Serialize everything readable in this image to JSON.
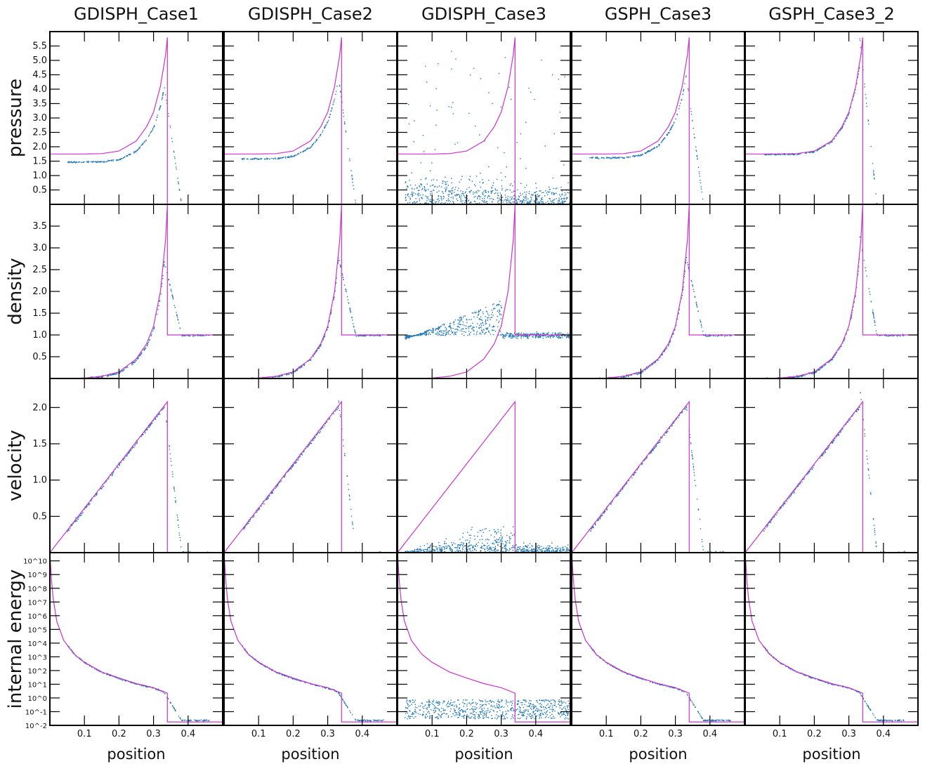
{
  "chart_data": {
    "type": "scatter",
    "columns": [
      "GDISPH_Case1",
      "GDISPH_Case2",
      "GDISPH_Case3",
      "GSPH_Case3",
      "GSPH_Case3_2"
    ],
    "rows": [
      {
        "ylabel": "pressure",
        "ylim": [
          0,
          6
        ],
        "yticks": [
          0.5,
          1.0,
          1.5,
          2.0,
          2.5,
          3.0,
          3.5,
          4.0,
          4.5,
          5.0,
          5.5
        ],
        "ytick_labels": [
          "0.5",
          "1.0",
          "1.5",
          "2.0",
          "2.5",
          "3.0",
          "3.5",
          "4.0",
          "4.5",
          "5.0",
          "5.5"
        ],
        "analytic": {
          "x": [
            0.0,
            0.1,
            0.15,
            0.2,
            0.25,
            0.28,
            0.3,
            0.32,
            0.335,
            0.34,
            0.3401,
            0.5
          ],
          "y": [
            1.75,
            1.75,
            1.76,
            1.85,
            2.2,
            2.7,
            3.2,
            4.1,
            5.2,
            5.8,
            0.0,
            0.0
          ]
        },
        "simulated_peak": [
          4.1,
          4.4,
          5.8,
          4.5,
          5.8
        ]
      },
      {
        "ylabel": "density",
        "ylim": [
          0,
          4
        ],
        "yticks": [
          0.5,
          1.0,
          1.5,
          2.0,
          2.5,
          3.0,
          3.5
        ],
        "ytick_labels": [
          "0.5",
          "1.0",
          "1.5",
          "2.0",
          "2.5",
          "3.0",
          "3.5"
        ],
        "analytic": {
          "x": [
            0.0,
            0.05,
            0.1,
            0.15,
            0.2,
            0.25,
            0.28,
            0.3,
            0.32,
            0.335,
            0.34,
            0.3401,
            0.5
          ],
          "y": [
            0.0,
            0.0,
            0.01,
            0.05,
            0.15,
            0.45,
            0.8,
            1.2,
            2.0,
            3.2,
            4.0,
            1.0,
            1.0
          ]
        },
        "simulated_peak": [
          2.7,
          2.8,
          1.3,
          2.8,
          3.3
        ]
      },
      {
        "ylabel": "velocity",
        "ylim": [
          0,
          2.4
        ],
        "yticks": [
          0.5,
          1.0,
          1.5,
          2.0
        ],
        "ytick_labels": [
          "0.5",
          "1.0",
          "1.5",
          "2.0"
        ],
        "analytic": {
          "x": [
            0.0,
            0.34,
            0.3401,
            0.5
          ],
          "y": [
            0.0,
            2.08,
            0.0,
            0.0
          ]
        },
        "simulated_peak": [
          2.05,
          2.1,
          0.1,
          2.05,
          2.3
        ]
      },
      {
        "ylabel": "internal energy",
        "log": true,
        "ylim": [
          -2,
          10.6
        ],
        "yticks": [
          -2,
          -1,
          0,
          1,
          2,
          3,
          4,
          5,
          6,
          7,
          8,
          9,
          10
        ],
        "ytick_labels": [
          "10^-2",
          "10^-1",
          "10^0",
          "10^1",
          "10^2",
          "10^3",
          "10^4",
          "10^5",
          "10^6",
          "10^7",
          "10^8",
          "10^9",
          "10^10"
        ],
        "analytic": {
          "x": [
            0.0,
            0.005,
            0.01,
            0.02,
            0.04,
            0.07,
            0.1,
            0.15,
            0.2,
            0.25,
            0.3,
            0.34,
            0.3401,
            0.5
          ],
          "y": [
            10.6,
            8.5,
            7.2,
            5.6,
            4.2,
            3.2,
            2.6,
            1.9,
            1.45,
            1.05,
            0.75,
            0.35,
            -1.75,
            -1.75
          ]
        },
        "simulated_peak": [
          0.4,
          0.4,
          0.0,
          0.4,
          0.4
        ]
      }
    ],
    "xlabel": "position",
    "xlim": [
      0,
      0.5
    ],
    "xticks": [
      0.1,
      0.2,
      0.3,
      0.4
    ],
    "xtick_labels": [
      "0.1",
      "0.2",
      "0.3",
      "0.4"
    ],
    "colors": {
      "analytic": "#cc33cc",
      "simulated": "#1f77b4"
    }
  }
}
